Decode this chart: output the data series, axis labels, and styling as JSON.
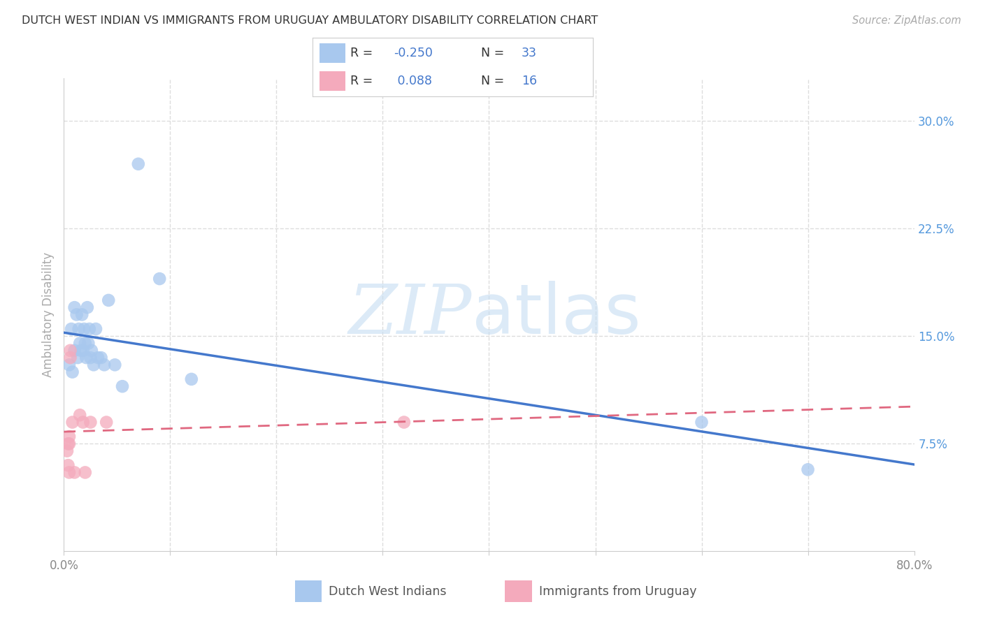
{
  "title": "DUTCH WEST INDIAN VS IMMIGRANTS FROM URUGUAY AMBULATORY DISABILITY CORRELATION CHART",
  "source": "Source: ZipAtlas.com",
  "ylabel": "Ambulatory Disability",
  "xlim": [
    0.0,
    0.8
  ],
  "ylim": [
    0.0,
    0.33
  ],
  "blue_R": "-0.250",
  "blue_N": "33",
  "pink_R": "0.088",
  "pink_N": "16",
  "blue_scatter_color": "#A8C8EE",
  "pink_scatter_color": "#F4AABC",
  "blue_line_color": "#4478CC",
  "pink_line_color": "#E06880",
  "text_color_rv": "#4478CC",
  "watermark_zip": "ZIP",
  "watermark_atlas": "atlas",
  "blue_points_x": [
    0.005,
    0.007,
    0.008,
    0.01,
    0.01,
    0.012,
    0.013,
    0.014,
    0.015,
    0.016,
    0.017,
    0.018,
    0.019,
    0.02,
    0.021,
    0.022,
    0.023,
    0.024,
    0.025,
    0.026,
    0.028,
    0.03,
    0.032,
    0.035,
    0.038,
    0.042,
    0.048,
    0.055,
    0.07,
    0.09,
    0.12,
    0.6,
    0.7
  ],
  "blue_points_y": [
    0.13,
    0.155,
    0.125,
    0.17,
    0.14,
    0.165,
    0.135,
    0.155,
    0.145,
    0.14,
    0.165,
    0.14,
    0.155,
    0.145,
    0.135,
    0.17,
    0.145,
    0.155,
    0.135,
    0.14,
    0.13,
    0.155,
    0.135,
    0.135,
    0.13,
    0.175,
    0.13,
    0.115,
    0.27,
    0.19,
    0.12,
    0.09,
    0.057
  ],
  "pink_points_x": [
    0.003,
    0.004,
    0.004,
    0.005,
    0.005,
    0.005,
    0.006,
    0.006,
    0.008,
    0.01,
    0.015,
    0.018,
    0.02,
    0.025,
    0.04,
    0.32
  ],
  "pink_points_y": [
    0.07,
    0.075,
    0.06,
    0.08,
    0.075,
    0.055,
    0.14,
    0.135,
    0.09,
    0.055,
    0.095,
    0.09,
    0.055,
    0.09,
    0.09,
    0.09
  ],
  "bg_color": "#FFFFFF",
  "axis_right_color": "#5599DD",
  "grid_color": "#DDDDDD",
  "spine_color": "#CCCCCC",
  "ytick_right": [
    0.075,
    0.15,
    0.225,
    0.3
  ],
  "ytick_right_labels": [
    "7.5%",
    "15.0%",
    "22.5%",
    "30.0%"
  ]
}
